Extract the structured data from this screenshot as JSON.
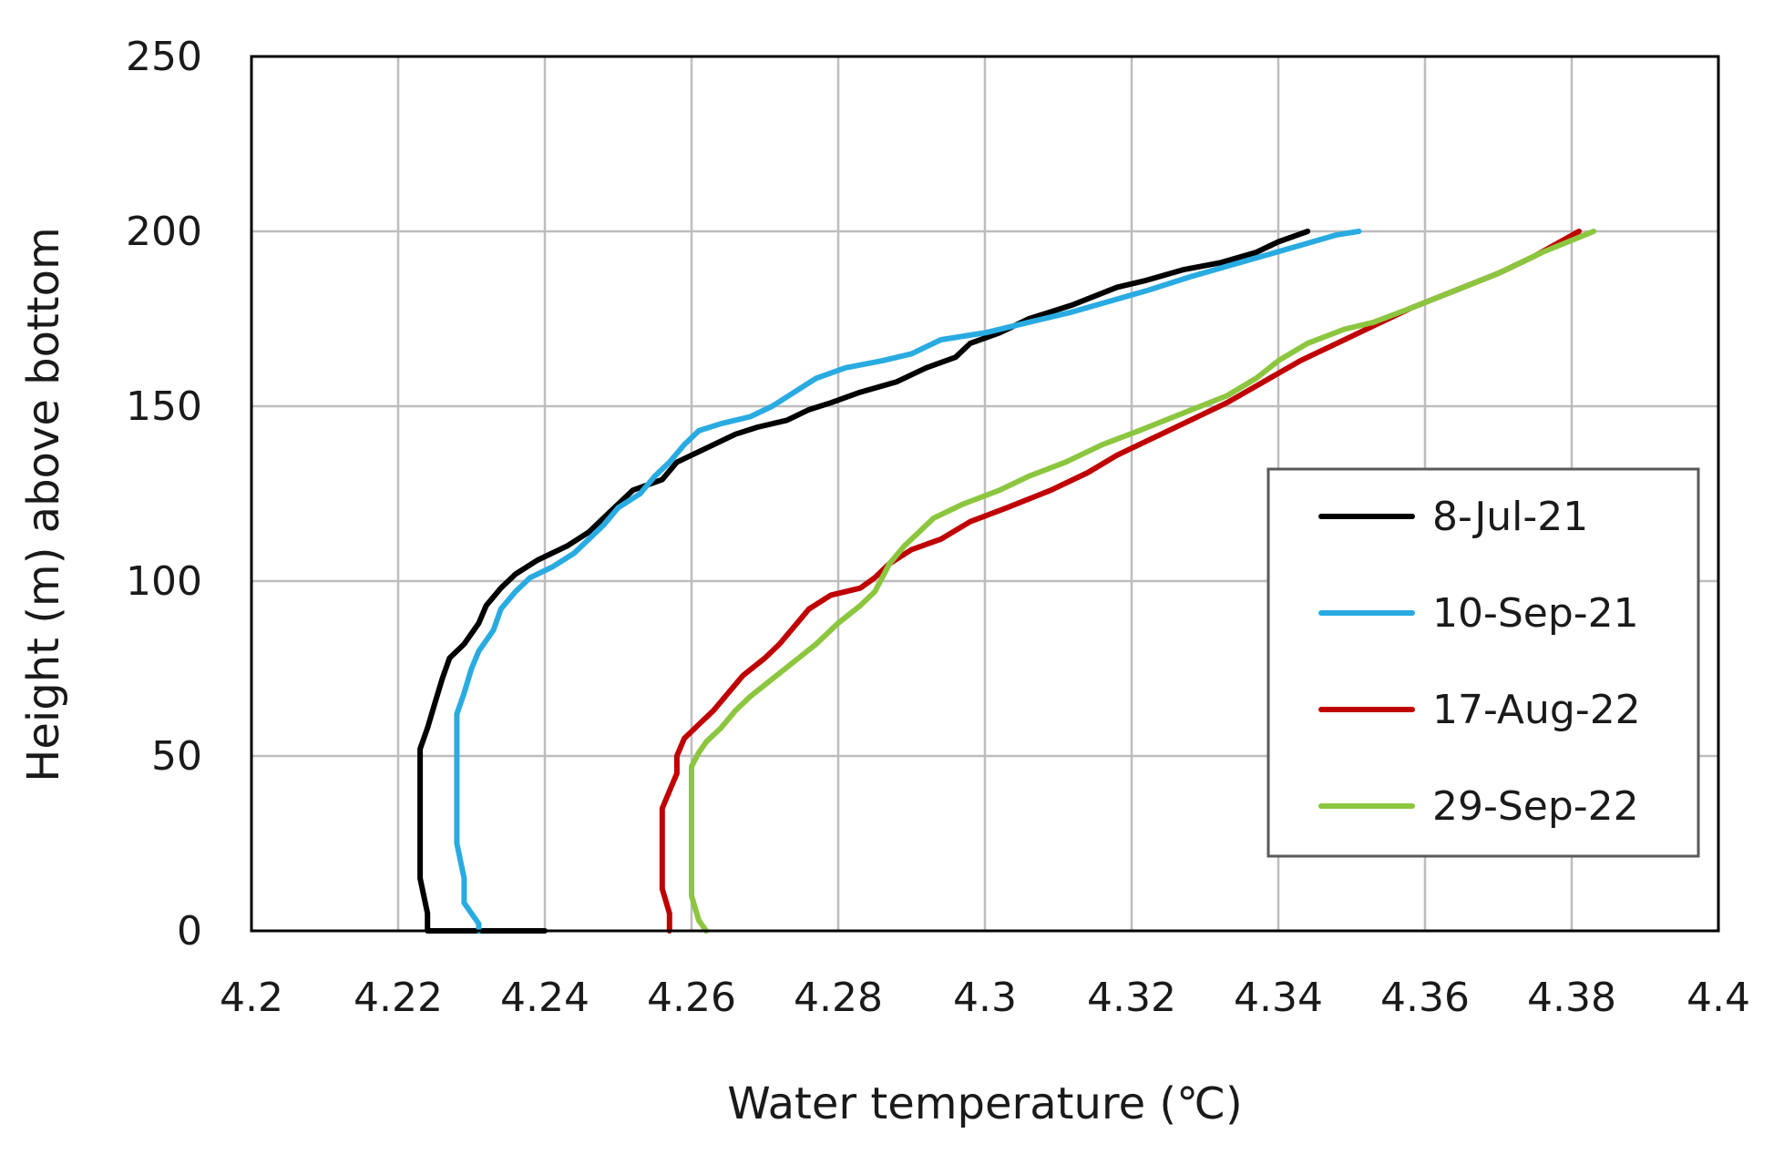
{
  "chart_data": {
    "type": "line",
    "title": "",
    "xlabel": "Water temperature (℃)",
    "ylabel": "Height (m) above bottom",
    "xlim": [
      4.2,
      4.4
    ],
    "ylim": [
      0,
      250
    ],
    "x_ticks": [
      4.2,
      4.22,
      4.24,
      4.26,
      4.28,
      4.3,
      4.32,
      4.34,
      4.36,
      4.38,
      4.4
    ],
    "x_tick_labels": [
      "4.2",
      "4.22",
      "4.24",
      "4.26",
      "4.28",
      "4.3",
      "4.32",
      "4.34",
      "4.36",
      "4.38",
      "4.4"
    ],
    "y_ticks": [
      0,
      50,
      100,
      150,
      200,
      250
    ],
    "y_tick_labels": [
      "0",
      "50",
      "100",
      "150",
      "200",
      "250"
    ],
    "grid": true,
    "legend_position": "right",
    "series": [
      {
        "name": "8-Jul-21",
        "color": "#000000",
        "points": [
          [
            4.24,
            0
          ],
          [
            4.232,
            0
          ],
          [
            4.224,
            0
          ],
          [
            4.224,
            5
          ],
          [
            4.223,
            15
          ],
          [
            4.223,
            30
          ],
          [
            4.223,
            45
          ],
          [
            4.223,
            52
          ],
          [
            4.224,
            58
          ],
          [
            4.225,
            65
          ],
          [
            4.226,
            72
          ],
          [
            4.227,
            78
          ],
          [
            4.229,
            82
          ],
          [
            4.231,
            88
          ],
          [
            4.232,
            93
          ],
          [
            4.234,
            98
          ],
          [
            4.236,
            102
          ],
          [
            4.239,
            106
          ],
          [
            4.243,
            110
          ],
          [
            4.246,
            114
          ],
          [
            4.249,
            120
          ],
          [
            4.252,
            126
          ],
          [
            4.256,
            129
          ],
          [
            4.258,
            134
          ],
          [
            4.262,
            138
          ],
          [
            4.266,
            142
          ],
          [
            4.269,
            144
          ],
          [
            4.273,
            146
          ],
          [
            4.276,
            149
          ],
          [
            4.279,
            151
          ],
          [
            4.283,
            154
          ],
          [
            4.288,
            157
          ],
          [
            4.292,
            161
          ],
          [
            4.296,
            164
          ],
          [
            4.298,
            168
          ],
          [
            4.302,
            171
          ],
          [
            4.306,
            175
          ],
          [
            4.312,
            179
          ],
          [
            4.318,
            184
          ],
          [
            4.322,
            186
          ],
          [
            4.327,
            189
          ],
          [
            4.332,
            191
          ],
          [
            4.337,
            194
          ],
          [
            4.34,
            197
          ],
          [
            4.344,
            200
          ]
        ]
      },
      {
        "name": "10-Sep-21",
        "color": "#29abe2",
        "points": [
          [
            4.231,
            0
          ],
          [
            4.231,
            2
          ],
          [
            4.229,
            8
          ],
          [
            4.229,
            15
          ],
          [
            4.228,
            25
          ],
          [
            4.228,
            35
          ],
          [
            4.228,
            45
          ],
          [
            4.228,
            55
          ],
          [
            4.228,
            62
          ],
          [
            4.229,
            68
          ],
          [
            4.23,
            75
          ],
          [
            4.231,
            80
          ],
          [
            4.233,
            86
          ],
          [
            4.234,
            92
          ],
          [
            4.236,
            97
          ],
          [
            4.238,
            101
          ],
          [
            4.241,
            104
          ],
          [
            4.244,
            108
          ],
          [
            4.246,
            112
          ],
          [
            4.248,
            116
          ],
          [
            4.25,
            121
          ],
          [
            4.253,
            125
          ],
          [
            4.255,
            130
          ],
          [
            4.257,
            134
          ],
          [
            4.259,
            139
          ],
          [
            4.261,
            143
          ],
          [
            4.264,
            145
          ],
          [
            4.268,
            147
          ],
          [
            4.271,
            150
          ],
          [
            4.274,
            154
          ],
          [
            4.277,
            158
          ],
          [
            4.281,
            161
          ],
          [
            4.286,
            163
          ],
          [
            4.29,
            165
          ],
          [
            4.294,
            169
          ],
          [
            4.3,
            171
          ],
          [
            4.306,
            174
          ],
          [
            4.312,
            177
          ],
          [
            4.317,
            180
          ],
          [
            4.322,
            183
          ],
          [
            4.328,
            187
          ],
          [
            4.333,
            190
          ],
          [
            4.338,
            193
          ],
          [
            4.343,
            196
          ],
          [
            4.348,
            199
          ],
          [
            4.351,
            200
          ]
        ]
      },
      {
        "name": "17-Aug-22",
        "color": "#c00000",
        "points": [
          [
            4.257,
            0
          ],
          [
            4.257,
            5
          ],
          [
            4.256,
            12
          ],
          [
            4.256,
            22
          ],
          [
            4.256,
            30
          ],
          [
            4.256,
            35
          ],
          [
            4.257,
            40
          ],
          [
            4.258,
            45
          ],
          [
            4.258,
            50
          ],
          [
            4.259,
            55
          ],
          [
            4.261,
            59
          ],
          [
            4.263,
            63
          ],
          [
            4.265,
            68
          ],
          [
            4.267,
            73
          ],
          [
            4.27,
            78
          ],
          [
            4.272,
            82
          ],
          [
            4.274,
            87
          ],
          [
            4.276,
            92
          ],
          [
            4.279,
            96
          ],
          [
            4.283,
            98
          ],
          [
            4.285,
            101
          ],
          [
            4.287,
            105
          ],
          [
            4.29,
            109
          ],
          [
            4.294,
            112
          ],
          [
            4.298,
            117
          ],
          [
            4.303,
            121
          ],
          [
            4.309,
            126
          ],
          [
            4.314,
            131
          ],
          [
            4.318,
            136
          ],
          [
            4.323,
            141
          ],
          [
            4.328,
            146
          ],
          [
            4.333,
            151
          ],
          [
            4.338,
            157
          ],
          [
            4.343,
            163
          ],
          [
            4.348,
            168
          ],
          [
            4.353,
            173
          ],
          [
            4.358,
            178
          ],
          [
            4.364,
            183
          ],
          [
            4.37,
            188
          ],
          [
            4.375,
            193
          ],
          [
            4.381,
            200
          ]
        ]
      },
      {
        "name": "29-Sep-22",
        "color": "#8cc63f",
        "points": [
          [
            4.262,
            0
          ],
          [
            4.261,
            3
          ],
          [
            4.26,
            10
          ],
          [
            4.26,
            20
          ],
          [
            4.26,
            30
          ],
          [
            4.26,
            40
          ],
          [
            4.26,
            47
          ],
          [
            4.261,
            51
          ],
          [
            4.262,
            54
          ],
          [
            4.264,
            58
          ],
          [
            4.266,
            63
          ],
          [
            4.268,
            67
          ],
          [
            4.271,
            72
          ],
          [
            4.274,
            77
          ],
          [
            4.277,
            82
          ],
          [
            4.28,
            88
          ],
          [
            4.283,
            93
          ],
          [
            4.285,
            97
          ],
          [
            4.286,
            101
          ],
          [
            4.287,
            105
          ],
          [
            4.289,
            110
          ],
          [
            4.291,
            114
          ],
          [
            4.293,
            118
          ],
          [
            4.297,
            122
          ],
          [
            4.302,
            126
          ],
          [
            4.306,
            130
          ],
          [
            4.311,
            134
          ],
          [
            4.316,
            139
          ],
          [
            4.321,
            143
          ],
          [
            4.327,
            148
          ],
          [
            4.333,
            153
          ],
          [
            4.337,
            158
          ],
          [
            4.34,
            163
          ],
          [
            4.344,
            168
          ],
          [
            4.349,
            172
          ],
          [
            4.353,
            174
          ],
          [
            4.358,
            178
          ],
          [
            4.364,
            183
          ],
          [
            4.37,
            188
          ],
          [
            4.376,
            194
          ],
          [
            4.383,
            200
          ]
        ]
      }
    ]
  }
}
